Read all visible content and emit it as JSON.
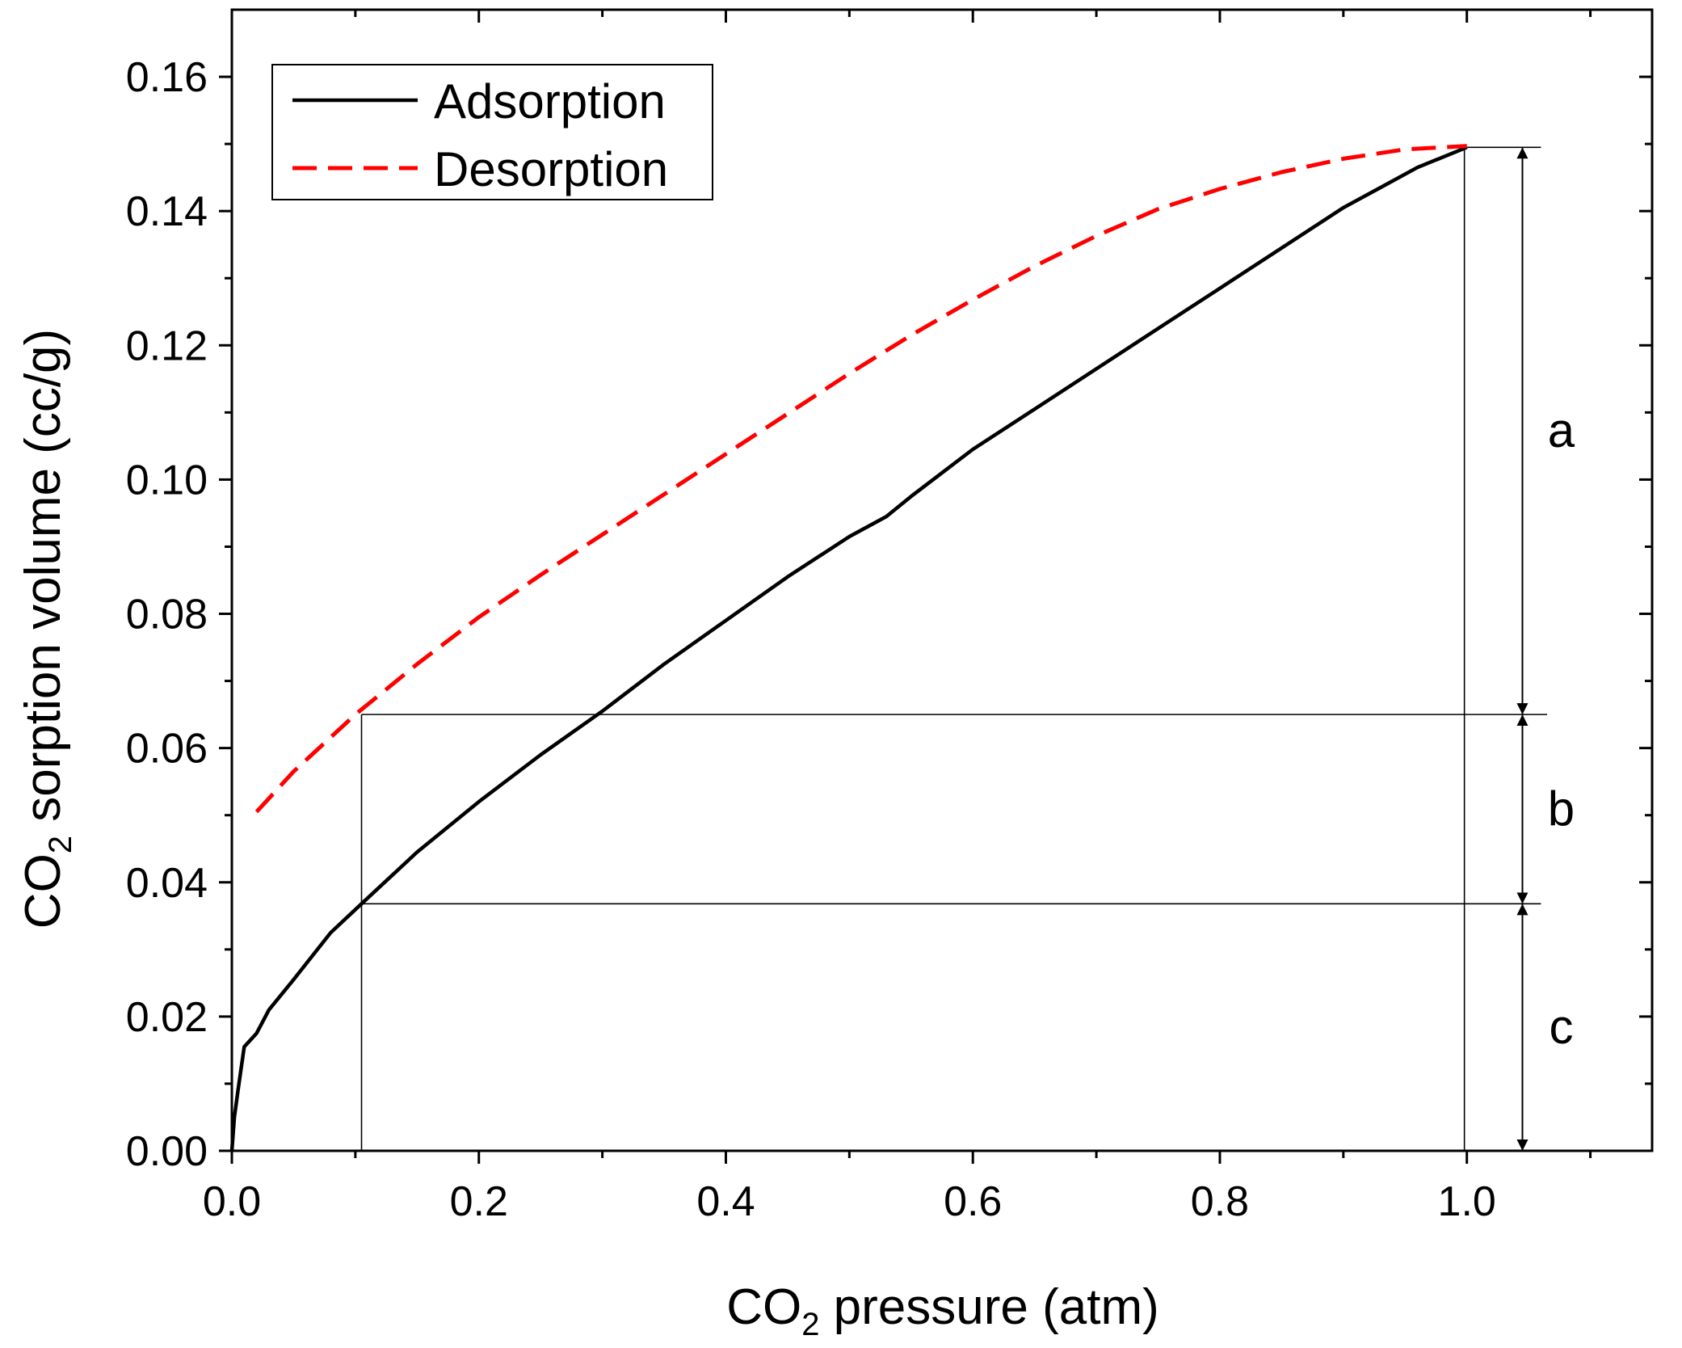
{
  "chart_data": {
    "type": "line",
    "title": "",
    "xlabel": {
      "main": "CO",
      "sub": "2",
      "rest": " pressure (atm)"
    },
    "ylabel": {
      "main": "CO",
      "sub": "2",
      "rest": " sorption volume (cc/g)"
    },
    "xlim": [
      0,
      1.15
    ],
    "ylim": [
      0,
      0.17
    ],
    "x_ticks": [
      0.0,
      0.2,
      0.4,
      0.6,
      0.8,
      1.0
    ],
    "x_tick_labels": [
      "0.0",
      "0.2",
      "0.4",
      "0.6",
      "0.8",
      "1.0"
    ],
    "x_minor_ticks": [
      0.1,
      0.3,
      0.5,
      0.7,
      0.9,
      1.1
    ],
    "y_ticks": [
      0.0,
      0.02,
      0.04,
      0.06,
      0.08,
      0.1,
      0.12,
      0.14,
      0.16
    ],
    "y_tick_labels": [
      "0.00",
      "0.02",
      "0.04",
      "0.06",
      "0.08",
      "0.10",
      "0.12",
      "0.14",
      "0.16"
    ],
    "y_minor_ticks": [
      0.01,
      0.03,
      0.05,
      0.07,
      0.09,
      0.11,
      0.13,
      0.15
    ],
    "grid": false,
    "legend_position": "top-left",
    "series": [
      {
        "name": "Adsorption",
        "color": "#000000",
        "style": "solid",
        "x": [
          0.0,
          0.002,
          0.005,
          0.01,
          0.02,
          0.03,
          0.05,
          0.08,
          0.105,
          0.15,
          0.2,
          0.25,
          0.3,
          0.35,
          0.4,
          0.45,
          0.5,
          0.53,
          0.55,
          0.6,
          0.65,
          0.7,
          0.75,
          0.8,
          0.85,
          0.9,
          0.93,
          0.96,
          1.0
        ],
        "y": [
          0.0,
          0.005,
          0.009,
          0.0155,
          0.0175,
          0.021,
          0.0255,
          0.0325,
          0.0368,
          0.0445,
          0.052,
          0.059,
          0.0655,
          0.0725,
          0.079,
          0.0855,
          0.0915,
          0.0945,
          0.0975,
          0.1045,
          0.1105,
          0.1165,
          0.1225,
          0.1285,
          0.1345,
          0.1405,
          0.1435,
          0.1465,
          0.1495
        ]
      },
      {
        "name": "Desorption",
        "color": "#ff0000",
        "style": "dashed",
        "x": [
          0.02,
          0.05,
          0.1,
          0.15,
          0.2,
          0.25,
          0.3,
          0.35,
          0.4,
          0.45,
          0.5,
          0.55,
          0.6,
          0.65,
          0.7,
          0.75,
          0.8,
          0.85,
          0.9,
          0.95,
          1.0
        ],
        "y": [
          0.0505,
          0.0565,
          0.065,
          0.0725,
          0.0795,
          0.0858,
          0.0918,
          0.0978,
          0.1038,
          0.1098,
          0.1158,
          0.1215,
          0.1268,
          0.1318,
          0.1363,
          0.1403,
          0.1433,
          0.1458,
          0.1478,
          0.1492,
          0.1497
        ]
      }
    ],
    "reference_lines": {
      "vertical": [
        {
          "x": 0.105,
          "y_from": 0,
          "y_to": 0.065
        },
        {
          "x": 0.998,
          "y_from": 0,
          "y_to": 0.1495
        }
      ],
      "horizontal": [
        {
          "y": 0.1495,
          "x_from": 0.998,
          "x_to": 1.06
        },
        {
          "y": 0.065,
          "x_from": 0.105,
          "x_to": 1.065
        },
        {
          "y": 0.0368,
          "x_from": 0.105,
          "x_to": 1.06
        }
      ]
    },
    "brackets": [
      {
        "label": "a",
        "x": 1.045,
        "y_from": 0.065,
        "y_to": 0.1495
      },
      {
        "label": "b",
        "x": 1.045,
        "y_from": 0.0368,
        "y_to": 0.065
      },
      {
        "label": "c",
        "x": 1.045,
        "y_from": 0.0,
        "y_to": 0.0368
      }
    ]
  }
}
